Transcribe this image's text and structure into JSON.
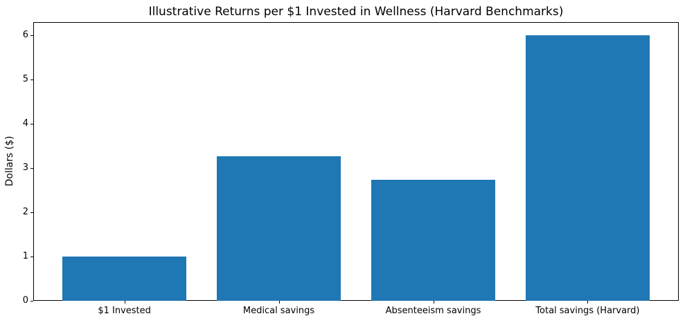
{
  "chart_data": {
    "type": "bar",
    "title": "Illustrative Returns per $1 Invested in Wellness (Harvard Benchmarks)",
    "categories": [
      "$1 Invested",
      "Medical savings",
      "Absenteeism savings",
      "Total savings (Harvard)"
    ],
    "values": [
      1.0,
      3.27,
      2.73,
      6.0
    ],
    "xlabel": "",
    "ylabel": "Dollars ($)",
    "ylim": [
      0,
      6.3
    ],
    "yticks": [
      0,
      1,
      2,
      3,
      4,
      5,
      6
    ],
    "bar_color": "#1f77b4",
    "axis_color": "#000000",
    "background_color": "#ffffff",
    "grid": false,
    "legend_position": "none"
  }
}
